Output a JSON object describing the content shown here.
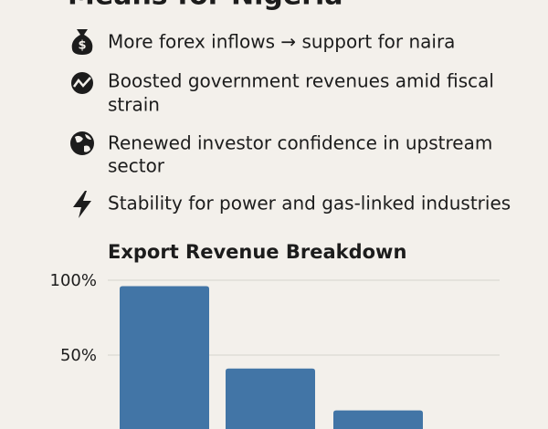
{
  "header": {
    "title": "Means for Nigeria"
  },
  "items": [
    {
      "lines": [
        "More forex inflows → support for naira"
      ]
    },
    {
      "lines": [
        "Boosted government revenues amid fiscal",
        "strain"
      ]
    },
    {
      "lines": [
        "Renewed investor confidence in upstream",
        "sector"
      ]
    },
    {
      "lines": [
        "Stability for power and gas-linked industries"
      ]
    }
  ],
  "chart_data": {
    "type": "bar",
    "title": "Export Revenue Breakdown",
    "categories": [
      null,
      null,
      null
    ],
    "values": [
      96,
      41,
      13
    ],
    "color": "#4275a6",
    "ylim": [
      0,
      100
    ],
    "yticks": [
      {
        "value": 50,
        "label": "50%"
      },
      {
        "value": 100,
        "label": "100%"
      }
    ],
    "grid": true
  }
}
